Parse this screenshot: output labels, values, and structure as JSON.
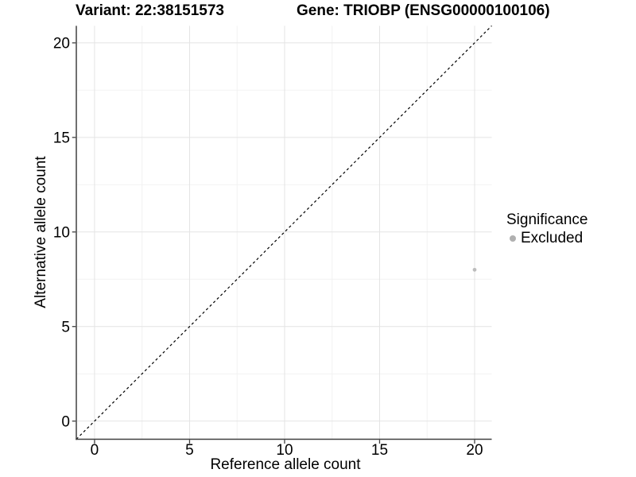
{
  "figure": {
    "titles": {
      "variant": "Variant: 22:38151573",
      "gene": "Gene: TRIOBP (ENSG00000100106)"
    }
  },
  "axes": {
    "x": {
      "label": "Reference allele count",
      "tick_labels": [
        "0",
        "5",
        "10",
        "15",
        "20"
      ]
    },
    "y": {
      "label": "Alternative allele count",
      "tick_labels": [
        "0",
        "5",
        "10",
        "15",
        "20"
      ]
    }
  },
  "legend": {
    "title": "Significance",
    "items": [
      {
        "label": "Excluded",
        "color": "#b0b0b0"
      }
    ]
  },
  "colors": {
    "background": "#ffffff",
    "text": "#000000",
    "axis_line": "#404040",
    "tick_mark": "#404040",
    "grid_major": "#e4e4e4",
    "grid_minor": "#f2f2f2",
    "point": "#bcbcbc",
    "reference_line": "#000000"
  },
  "chart_data": {
    "type": "scatter",
    "title": "Variant: 22:38151573 | Gene: TRIOBP (ENSG00000100106)",
    "xlabel": "Reference allele count",
    "ylabel": "Alternative allele count",
    "xlim": [
      -0.96,
      20.9
    ],
    "ylim": [
      -0.96,
      20.9
    ],
    "x_major_ticks": [
      0,
      5,
      10,
      15,
      20
    ],
    "y_major_ticks": [
      0,
      5,
      10,
      15,
      20
    ],
    "x_minor_ticks": [
      2.5,
      7.5,
      12.5,
      17.5
    ],
    "y_minor_ticks": [
      2.5,
      7.5,
      12.5,
      17.5
    ],
    "grid": "major+minor",
    "legend_position": "right",
    "series": [
      {
        "name": "Excluded",
        "color": "#bcbcbc",
        "marker_radius": 2.4,
        "points": [
          {
            "x": 20,
            "y": 8
          }
        ]
      }
    ],
    "reference_line": {
      "kind": "identity y=x",
      "style": "dashed",
      "color": "#000000",
      "dash": [
        3.2,
        3.2
      ]
    }
  }
}
